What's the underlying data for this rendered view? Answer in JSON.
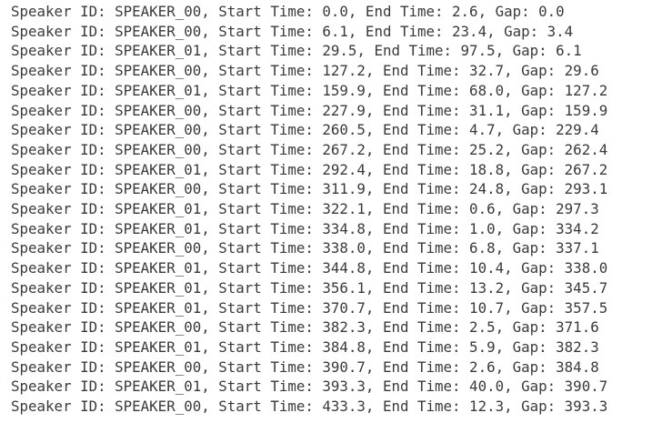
{
  "lines": [
    "Speaker ID: SPEAKER_00, Start Time: 0.0, End Time: 2.6, Gap: 0.0",
    "Speaker ID: SPEAKER_00, Start Time: 6.1, End Time: 23.4, Gap: 3.4",
    "Speaker ID: SPEAKER_01, Start Time: 29.5, End Time: 97.5, Gap: 6.1",
    "Speaker ID: SPEAKER_00, Start Time: 127.2, End Time: 32.7, Gap: 29.6",
    "Speaker ID: SPEAKER_01, Start Time: 159.9, End Time: 68.0, Gap: 127.2",
    "Speaker ID: SPEAKER_00, Start Time: 227.9, End Time: 31.1, Gap: 159.9",
    "Speaker ID: SPEAKER_00, Start Time: 260.5, End Time: 4.7, Gap: 229.4",
    "Speaker ID: SPEAKER_00, Start Time: 267.2, End Time: 25.2, Gap: 262.4",
    "Speaker ID: SPEAKER_01, Start Time: 292.4, End Time: 18.8, Gap: 267.2",
    "Speaker ID: SPEAKER_00, Start Time: 311.9, End Time: 24.8, Gap: 293.1",
    "Speaker ID: SPEAKER_01, Start Time: 322.1, End Time: 0.6, Gap: 297.3",
    "Speaker ID: SPEAKER_01, Start Time: 334.8, End Time: 1.0, Gap: 334.2",
    "Speaker ID: SPEAKER_00, Start Time: 338.0, End Time: 6.8, Gap: 337.1",
    "Speaker ID: SPEAKER_01, Start Time: 344.8, End Time: 10.4, Gap: 338.0",
    "Speaker ID: SPEAKER_01, Start Time: 356.1, End Time: 13.2, Gap: 345.7",
    "Speaker ID: SPEAKER_01, Start Time: 370.7, End Time: 10.7, Gap: 357.5",
    "Speaker ID: SPEAKER_00, Start Time: 382.3, End Time: 2.5, Gap: 371.6",
    "Speaker ID: SPEAKER_01, Start Time: 384.8, End Time: 5.9, Gap: 382.3",
    "Speaker ID: SPEAKER_00, Start Time: 390.7, End Time: 2.6, Gap: 384.8",
    "Speaker ID: SPEAKER_01, Start Time: 393.3, End Time: 40.0, Gap: 390.7",
    "Speaker ID: SPEAKER_00, Start Time: 433.3, End Time: 12.3, Gap: 393.3"
  ]
}
